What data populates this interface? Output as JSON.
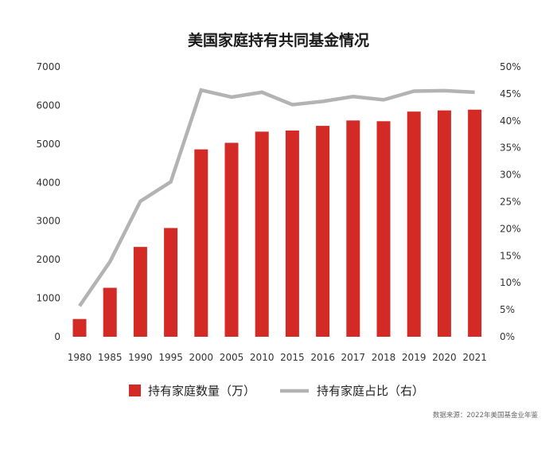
{
  "chart_data": {
    "type": "bar",
    "title": "美国家庭持有共同基金情况",
    "categories": [
      "1980",
      "1985",
      "1990",
      "1995",
      "2000",
      "2005",
      "2010",
      "2015",
      "2016",
      "2017",
      "2018",
      "2019",
      "2020",
      "2021"
    ],
    "series": [
      {
        "name": "持有家庭数量（万）",
        "type": "bar",
        "axis": "left",
        "color": "#d42a25",
        "values": [
          460,
          1270,
          2330,
          2820,
          4860,
          5030,
          5320,
          5350,
          5470,
          5610,
          5590,
          5840,
          5870,
          5890
        ]
      },
      {
        "name": "持有家庭占比（右）",
        "type": "line",
        "axis": "right",
        "color": "#b3b3b3",
        "values": [
          5.7,
          13.9,
          25.1,
          28.7,
          45.7,
          44.4,
          45.3,
          43.0,
          43.6,
          44.5,
          43.9,
          45.5,
          45.6,
          45.3
        ]
      }
    ],
    "y_left": {
      "ylim": [
        0,
        7000
      ],
      "ticks": [
        "0",
        "1000",
        "2000",
        "3000",
        "4000",
        "5000",
        "6000",
        "7000"
      ]
    },
    "y_right": {
      "ylim": [
        0,
        50
      ],
      "ticks": [
        "0%",
        "5%",
        "10%",
        "15%",
        "20%",
        "25%",
        "30%",
        "35%",
        "40%",
        "45%",
        "50%"
      ]
    },
    "grid": false,
    "legend_position": "bottom",
    "source": "数据来源：2022年美国基金业年鉴"
  }
}
